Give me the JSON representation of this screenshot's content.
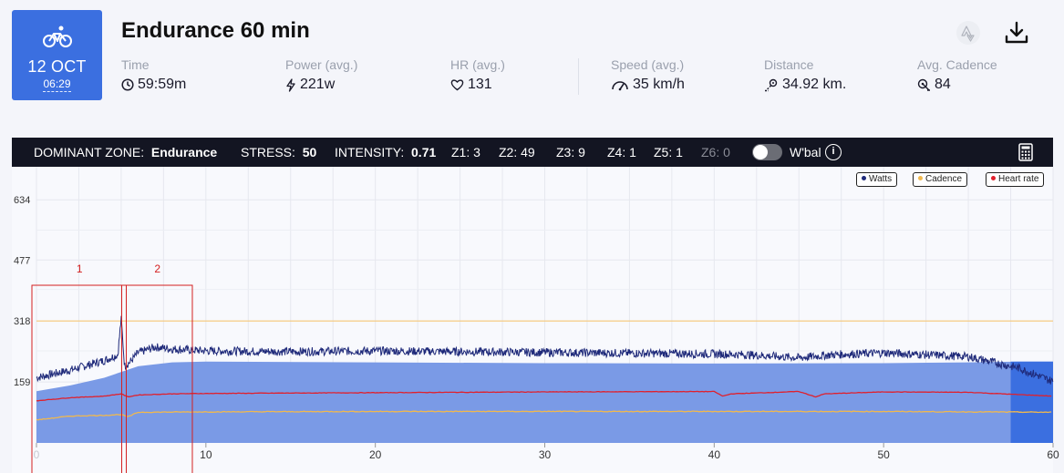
{
  "workout": {
    "day": "12 OCT",
    "time": "06:29",
    "title": "Endurance 60 min"
  },
  "stats": [
    {
      "label": "Time",
      "value": "59:59m",
      "icon": "clock-icon"
    },
    {
      "label": "Power (avg.)",
      "value": "221w",
      "icon": "lightning-icon"
    },
    {
      "label": "HR (avg.)",
      "value": "131",
      "icon": "heart-icon"
    },
    {
      "label": "Speed (avg.)",
      "value": "35 km/h",
      "icon": "speedometer-icon"
    },
    {
      "label": "Distance",
      "value": "34.92 km.",
      "icon": "route-icon"
    },
    {
      "label": "Avg. Cadence",
      "value": "84",
      "icon": "cadence-icon"
    }
  ],
  "zone_bar": {
    "dominant_label": "DOMINANT ZONE:",
    "dominant_value": "Endurance",
    "stress_label": "STRESS:",
    "stress_value": "50",
    "intensity_label": "INTENSITY:",
    "intensity_value": "0.71",
    "zones": [
      "Z1: 3",
      "Z2: 49",
      "Z3: 9",
      "Z4: 1",
      "Z5: 1",
      "Z6: 0"
    ],
    "wbal_label": "W'bal"
  },
  "chart_data": {
    "type": "line",
    "xlim": [
      0,
      60
    ],
    "ylim": [
      0,
      720
    ],
    "x_ticks": [
      "0",
      "10",
      "20",
      "30",
      "40",
      "50",
      "60"
    ],
    "y_ticks": [
      "159",
      "318",
      "477",
      "634"
    ],
    "reference_line": 318,
    "legend": [
      "Watts",
      "Cadence",
      "Heart rate"
    ],
    "series": [
      {
        "name": "Watts",
        "color": "#1f2a7a",
        "x": [
          0,
          2,
          4,
          4.8,
          5,
          5.2,
          5.5,
          6,
          7,
          8,
          10,
          15,
          20,
          25,
          30,
          35,
          40,
          42,
          45,
          47,
          50,
          55,
          58,
          60
        ],
        "y": [
          170,
          190,
          215,
          230,
          325,
          200,
          210,
          235,
          250,
          245,
          240,
          238,
          240,
          238,
          236,
          234,
          232,
          230,
          222,
          230,
          235,
          225,
          195,
          160
        ]
      },
      {
        "name": "Heart rate",
        "color": "#e0202c",
        "x": [
          0,
          2,
          4,
          5,
          5.4,
          6,
          8,
          10,
          20,
          30,
          40,
          40.5,
          41,
          45,
          46,
          46.5,
          50,
          55,
          60
        ],
        "y": [
          110,
          118,
          122,
          128,
          120,
          125,
          128,
          129,
          131,
          133,
          134,
          122,
          128,
          134,
          120,
          128,
          133,
          132,
          122
        ]
      },
      {
        "name": "Cadence",
        "color": "#f0b84e",
        "x": [
          0,
          2,
          4,
          5,
          5.4,
          6,
          10,
          20,
          30,
          40,
          50,
          60
        ],
        "y": [
          60,
          70,
          72,
          74,
          68,
          80,
          81,
          82,
          82,
          82,
          82,
          80
        ]
      }
    ],
    "area": {
      "x": [
        0,
        2,
        4,
        6,
        8,
        10,
        20,
        30,
        40,
        50,
        55,
        58,
        60
      ],
      "y": [
        135,
        150,
        170,
        200,
        210,
        212,
        210,
        208,
        207,
        208,
        210,
        212,
        212
      ]
    },
    "annotations": [
      {
        "label": "1",
        "x_start": 0,
        "x_end": 5.3
      },
      {
        "label": "2",
        "x_start": 5.3,
        "x_end": 9.2
      }
    ]
  }
}
